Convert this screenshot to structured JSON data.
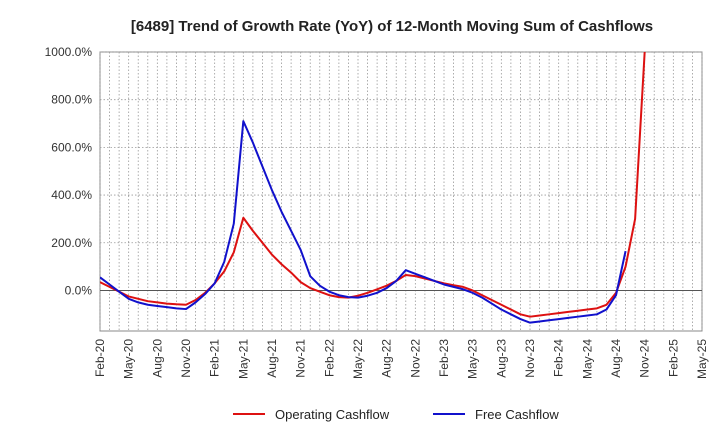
{
  "chart_data": {
    "type": "line",
    "title": "[6489]  Trend of Growth Rate (YoY) of 12-Month Moving Sum of Cashflows",
    "xlabel": "",
    "ylabel": "",
    "ylim": [
      -170,
      1000
    ],
    "y_ticks": [
      "1000.0%",
      "800.0%",
      "600.0%",
      "400.0%",
      "200.0%",
      "0.0%"
    ],
    "y_tick_values": [
      1000,
      800,
      600,
      400,
      200,
      0
    ],
    "x_tick_labels": [
      "Feb-20",
      "May-20",
      "Aug-20",
      "Nov-20",
      "Feb-21",
      "May-21",
      "Aug-21",
      "Nov-21",
      "Feb-22",
      "May-22",
      "Aug-22",
      "Nov-22",
      "Feb-23",
      "May-23",
      "Aug-23",
      "Nov-23",
      "Feb-24",
      "May-24",
      "Aug-24",
      "Nov-24",
      "Feb-25",
      "May-25"
    ],
    "x_months": [
      "2020-02",
      "2020-03",
      "2020-04",
      "2020-05",
      "2020-06",
      "2020-07",
      "2020-08",
      "2020-09",
      "2020-10",
      "2020-11",
      "2020-12",
      "2021-01",
      "2021-02",
      "2021-03",
      "2021-04",
      "2021-05",
      "2021-06",
      "2021-07",
      "2021-08",
      "2021-09",
      "2021-10",
      "2021-11",
      "2021-12",
      "2022-01",
      "2022-02",
      "2022-03",
      "2022-04",
      "2022-05",
      "2022-06",
      "2022-07",
      "2022-08",
      "2022-09",
      "2022-10",
      "2022-11",
      "2022-12",
      "2023-01",
      "2023-02",
      "2023-03",
      "2023-04",
      "2023-05",
      "2023-06",
      "2023-07",
      "2023-08",
      "2023-09",
      "2023-10",
      "2023-11",
      "2023-12",
      "2024-01",
      "2024-02",
      "2024-03",
      "2024-04",
      "2024-05",
      "2024-06",
      "2024-07",
      "2024-08",
      "2024-09",
      "2024-10",
      "2024-11",
      "2024-12",
      "2025-01",
      "2025-02",
      "2025-03",
      "2025-04",
      "2025-05"
    ],
    "grid": true,
    "legend_position": "bottom-center",
    "series": [
      {
        "name": "Operating Cashflow",
        "color": "#dd1111",
        "values": [
          35,
          15,
          -5,
          -25,
          -35,
          -45,
          -50,
          -55,
          -58,
          -60,
          -40,
          -10,
          30,
          80,
          160,
          305,
          250,
          200,
          150,
          110,
          75,
          35,
          10,
          -5,
          -20,
          -28,
          -30,
          -22,
          -10,
          5,
          20,
          40,
          65,
          60,
          50,
          40,
          30,
          22,
          15,
          0,
          -20,
          -40,
          -60,
          -80,
          -100,
          -110,
          -105,
          -100,
          -95,
          -90,
          -85,
          -80,
          -75,
          -60,
          -10,
          100,
          300,
          1000,
          null,
          null,
          null,
          null,
          null,
          null
        ]
      },
      {
        "name": "Free Cashflow",
        "color": "#1111cc",
        "values": [
          55,
          25,
          -5,
          -35,
          -50,
          -60,
          -65,
          -70,
          -75,
          -78,
          -50,
          -15,
          30,
          120,
          280,
          710,
          620,
          520,
          420,
          330,
          250,
          170,
          60,
          20,
          -5,
          -20,
          -28,
          -30,
          -22,
          -10,
          10,
          40,
          85,
          70,
          55,
          40,
          25,
          15,
          5,
          -10,
          -30,
          -55,
          -80,
          -100,
          -120,
          -135,
          -130,
          -125,
          -120,
          -115,
          -110,
          -105,
          -100,
          -80,
          -20,
          165,
          null,
          null,
          null,
          null,
          null,
          null,
          null,
          null
        ]
      }
    ]
  }
}
